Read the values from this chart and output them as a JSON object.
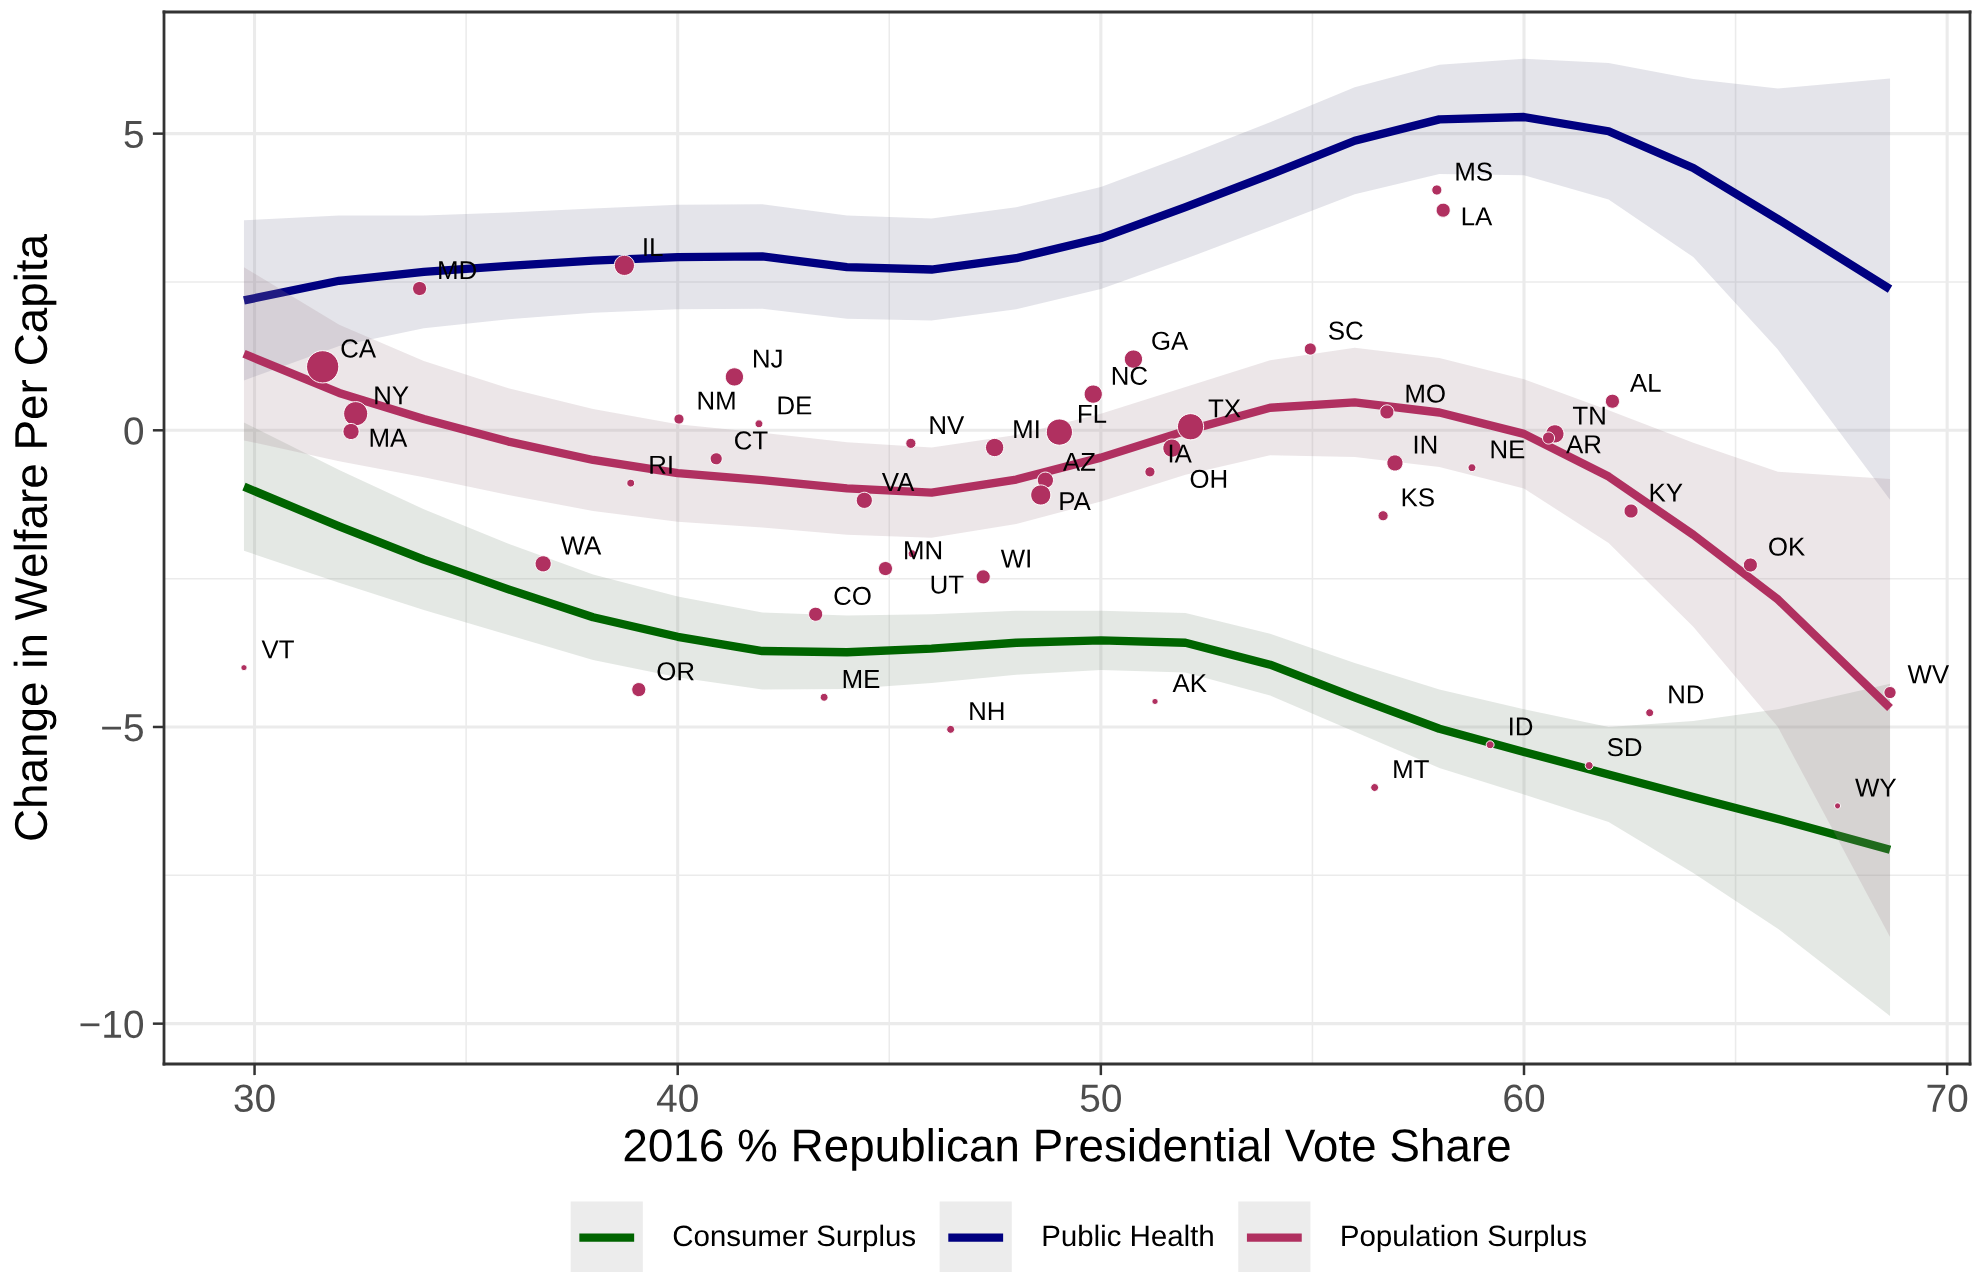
{
  "chart_data": {
    "type": "line",
    "xlabel": "2016 % Republican Presidential Vote Share",
    "ylabel": "Change in Welfare Per Capita",
    "xlim": [
      27.86,
      70.54
    ],
    "ylim": [
      -10.68,
      7.05
    ],
    "xticks": [
      30,
      40,
      50,
      60,
      70
    ],
    "yticks": [
      {
        "value": -10,
        "label": "−10"
      },
      {
        "value": -5,
        "label": "−5"
      },
      0,
      5
    ],
    "grid": true,
    "legend": "bottom",
    "series": [
      {
        "type": "bubble",
        "color": "#b03060",
        "marker": "circle",
        "x": [
          31.61,
          32.39,
          32.28,
          33.9,
          38.74,
          41.34,
          40.03,
          41.92,
          40.91,
          38.89,
          36.82,
          44.41,
          45.51,
          47.49,
          49.02,
          49.82,
          50.77,
          54.95,
          48.69,
          48.58,
          51.16,
          51.68,
          52.12,
          44.91,
          45.54,
          47.22,
          43.26,
          57.94,
          58.09,
          56.76,
          56.95,
          56.67,
          58.77,
          60.73,
          60.58,
          62.09,
          62.53,
          65.35,
          68.65,
          29.75,
          39.08,
          43.46,
          46.45,
          51.28,
          56.47,
          59.2,
          61.54,
          62.97,
          67.41
        ],
        "values": [
          1.07,
          0.28,
          -0.02,
          2.39,
          2.78,
          0.9,
          0.19,
          0.11,
          -0.48,
          -0.89,
          -2.25,
          -1.18,
          -0.22,
          -0.29,
          -0.03,
          0.61,
          1.2,
          1.37,
          -0.84,
          -1.09,
          -0.7,
          -0.3,
          0.06,
          -2.33,
          -2.08,
          -2.47,
          -3.1,
          4.05,
          3.71,
          0.31,
          -0.55,
          -1.44,
          -0.63,
          -0.06,
          -0.13,
          0.49,
          -1.36,
          -2.27,
          -4.42,
          -4.0,
          -4.37,
          -4.5,
          -5.04,
          -4.57,
          -6.02,
          -5.3,
          -5.65,
          -4.76,
          -6.33
        ],
        "sizes": [
          1,
          0.56,
          0.25,
          0.19,
          0.39,
          0.32,
          0.1,
          0.06,
          0.14,
          0.06,
          0.25,
          0.25,
          0.1,
          0.32,
          0.66,
          0.32,
          0.32,
          0.14,
          0.25,
          0.39,
          0.1,
          0.32,
          0.66,
          0.19,
          0.06,
          0.19,
          0.19,
          0.1,
          0.19,
          0.19,
          0.25,
          0.1,
          0.06,
          0.32,
          0.14,
          0.19,
          0.19,
          0.19,
          0.14,
          0.035,
          0.19,
          0.06,
          0.06,
          0.035,
          0.06,
          0.06,
          0.06,
          0.06,
          0.035
        ],
        "value_labels": [
          "CA",
          "NY",
          "MA",
          "MD",
          "IL",
          "NJ",
          "NM",
          "DE",
          "CT",
          "RI",
          "WA",
          "VA",
          "NV",
          "MI",
          "FL",
          "NC",
          "GA",
          "SC",
          "AZ",
          "PA",
          "IA",
          "OH",
          "TX",
          "MN",
          "UT",
          "WI",
          "CO",
          "MS",
          "LA",
          "MO",
          "IN",
          "KS",
          "NE",
          "TN",
          "AR",
          "AL",
          "KY",
          "OK",
          "WV",
          "VT",
          "OR",
          "ME",
          "NH",
          "AK",
          "MT",
          "ID",
          "SD",
          "ND",
          "WY"
        ]
      },
      {
        "name": "Consumer Surplus",
        "color": "#006400",
        "x": [
          29.75,
          32,
          34,
          36,
          38,
          40,
          42,
          44,
          46,
          48,
          50,
          52,
          54,
          56,
          58,
          60,
          62,
          64,
          66,
          68.65
        ],
        "values": [
          -0.95,
          -1.62,
          -2.18,
          -2.68,
          -3.15,
          -3.48,
          -3.72,
          -3.74,
          -3.68,
          -3.58,
          -3.54,
          -3.58,
          -3.95,
          -4.5,
          -5.03,
          -5.42,
          -5.8,
          -6.18,
          -6.55,
          -7.07
        ],
        "upper": [
          0.13,
          -0.67,
          -1.33,
          -1.91,
          -2.43,
          -2.8,
          -3.07,
          -3.12,
          -3.1,
          -3.04,
          -3.04,
          -3.08,
          -3.43,
          -3.92,
          -4.37,
          -4.7,
          -5.0,
          -4.9,
          -4.7,
          -4.27
        ],
        "lower": [
          -2.03,
          -2.57,
          -3.03,
          -3.45,
          -3.87,
          -4.16,
          -4.37,
          -4.36,
          -4.26,
          -4.12,
          -4.04,
          -4.08,
          -4.47,
          -5.08,
          -5.69,
          -6.14,
          -6.6,
          -7.46,
          -8.4,
          -9.87
        ]
      },
      {
        "name": "Public Health",
        "color": "#000080",
        "x": [
          29.75,
          32,
          34,
          36,
          38,
          40,
          42,
          44,
          46,
          48,
          50,
          52,
          54,
          56,
          58,
          60,
          62,
          64,
          66,
          68.65
        ],
        "values": [
          2.19,
          2.52,
          2.67,
          2.77,
          2.86,
          2.92,
          2.93,
          2.75,
          2.71,
          2.9,
          3.24,
          3.76,
          4.31,
          4.88,
          5.24,
          5.28,
          5.04,
          4.42,
          3.56,
          2.38
        ],
        "upper": [
          3.54,
          3.62,
          3.62,
          3.67,
          3.74,
          3.8,
          3.81,
          3.62,
          3.57,
          3.76,
          4.1,
          4.63,
          5.19,
          5.78,
          6.16,
          6.26,
          6.19,
          5.92,
          5.76,
          5.93
        ],
        "lower": [
          0.84,
          1.42,
          1.72,
          1.87,
          1.98,
          2.04,
          2.05,
          1.88,
          1.85,
          2.04,
          2.38,
          2.89,
          3.43,
          3.98,
          4.32,
          4.3,
          3.89,
          2.92,
          1.36,
          -1.17
        ]
      },
      {
        "name": "Population Surplus",
        "color": "#b03060",
        "x": [
          29.75,
          32,
          34,
          36,
          38,
          40,
          42,
          44,
          46,
          48,
          50,
          52,
          54,
          56,
          58,
          60,
          62,
          64,
          66,
          68.65
        ],
        "values": [
          1.29,
          0.63,
          0.19,
          -0.19,
          -0.5,
          -0.72,
          -0.84,
          -0.98,
          -1.05,
          -0.83,
          -0.46,
          -0.01,
          0.38,
          0.47,
          0.3,
          -0.06,
          -0.78,
          -1.76,
          -2.85,
          -4.68
        ],
        "upper": [
          2.75,
          1.78,
          1.17,
          0.71,
          0.36,
          0.1,
          -0.04,
          -0.2,
          -0.29,
          -0.08,
          0.28,
          0.73,
          1.18,
          1.39,
          1.22,
          0.86,
          0.34,
          -0.21,
          -0.7,
          -0.82
        ],
        "lower": [
          -0.17,
          -0.52,
          -0.79,
          -1.09,
          -1.36,
          -1.54,
          -1.64,
          -1.76,
          -1.81,
          -1.58,
          -1.2,
          -0.75,
          -0.42,
          -0.45,
          -0.62,
          -0.98,
          -1.9,
          -3.31,
          -5.0,
          -8.54
        ]
      }
    ]
  }
}
